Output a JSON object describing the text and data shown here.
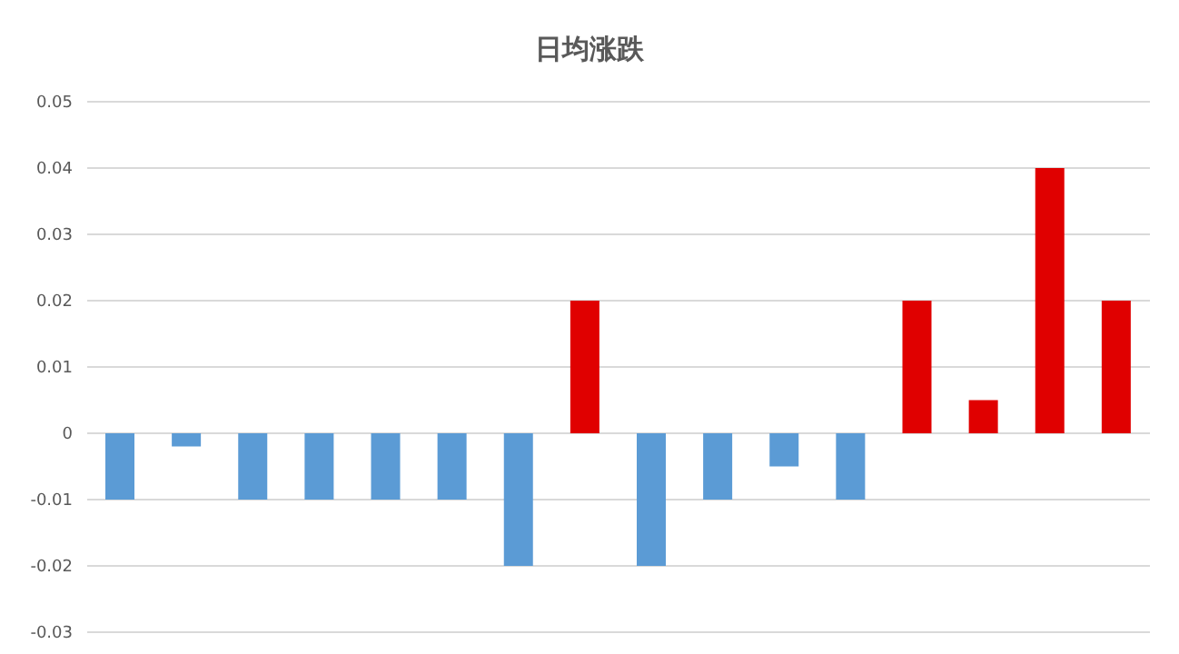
{
  "chart_data": {
    "type": "bar",
    "title": "日均涨跌",
    "categories": [
      null,
      null,
      null,
      null,
      null,
      null,
      null,
      null,
      null,
      null,
      null,
      null,
      null,
      null,
      null,
      null
    ],
    "values": [
      -0.01,
      -0.002,
      -0.01,
      -0.01,
      -0.01,
      -0.01,
      -0.02,
      0.02,
      -0.02,
      -0.01,
      -0.005,
      -0.01,
      0.02,
      0.005,
      0.04,
      0.02
    ],
    "colors": [
      "#5b9bd5",
      "#5b9bd5",
      "#5b9bd5",
      "#5b9bd5",
      "#5b9bd5",
      "#5b9bd5",
      "#5b9bd5",
      "#e00000",
      "#5b9bd5",
      "#5b9bd5",
      "#5b9bd5",
      "#5b9bd5",
      "#e00000",
      "#e00000",
      "#e00000",
      "#e00000"
    ],
    "ylim": [
      -0.03,
      0.05
    ],
    "yticks": [
      -0.03,
      -0.02,
      -0.01,
      0,
      0.01,
      0.02,
      0.03,
      0.04,
      0.05
    ],
    "grid": "y",
    "tick_labels": "y"
  }
}
